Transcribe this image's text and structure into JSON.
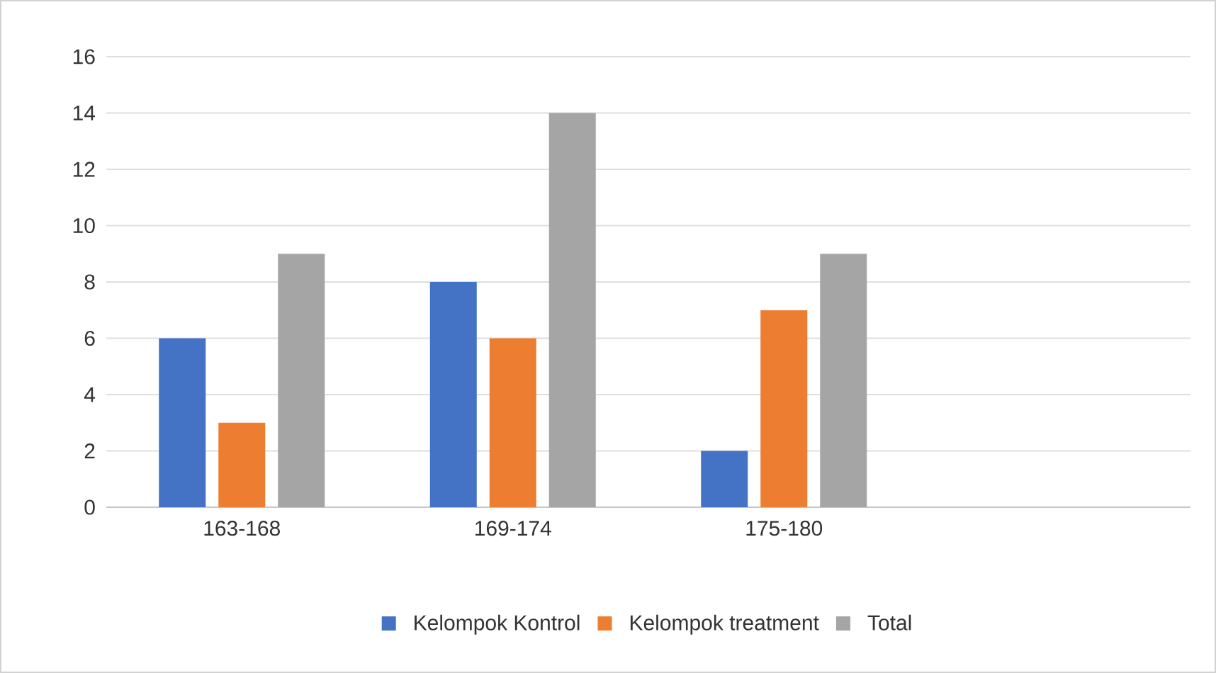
{
  "chart_data": {
    "type": "bar",
    "categories": [
      "163-168",
      "169-174",
      "175-180",
      null
    ],
    "series": [
      {
        "name": "Kelompok Kontrol",
        "color": "#4472c4",
        "values": [
          6,
          8,
          2,
          null
        ]
      },
      {
        "name": "Kelompok treatment",
        "color": "#ed7d31",
        "values": [
          3,
          6,
          7,
          null
        ]
      },
      {
        "name": "Total",
        "color": "#a5a5a5",
        "values": [
          9,
          14,
          9,
          null
        ]
      }
    ],
    "ylim": [
      0,
      16
    ],
    "yticks": [
      0,
      2,
      4,
      6,
      8,
      10,
      12,
      14,
      16
    ],
    "grid": "y",
    "legend": "bottom"
  }
}
